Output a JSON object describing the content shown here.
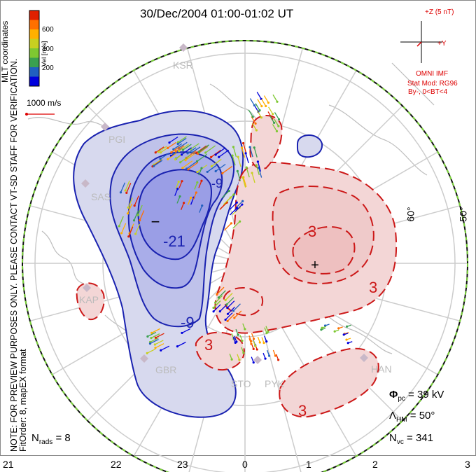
{
  "title": "30/Dec/2004 01:00-01:02 UT",
  "side_note": {
    "line1": "NOTE: FOR PREVIEW PURPOSES ONLY. PLEASE CONTACT VT-SD STAFF FOR VERIFICATION.",
    "line2": "FitOrder: 8, mapEX format"
  },
  "coordinates_label": "MLT coordinates",
  "colorbar": {
    "label": "Vel [m/s]",
    "ticks": [
      "600",
      "400",
      "200"
    ],
    "colors": [
      "#0000dd",
      "#2060c0",
      "#3aa050",
      "#7ec832",
      "#c8d020",
      "#ffb000",
      "#ff7000",
      "#e02000"
    ]
  },
  "reference_vector": {
    "label": "1000 m/s"
  },
  "imf": {
    "z_label": "+Z (5 nT)",
    "y_label": "+Y",
    "source": "OMNI IMF",
    "stat_model": "Stat Mod: RG96",
    "condition": "By-, 0<BT<4"
  },
  "stations": [
    "KSR",
    "PGI",
    "SAS",
    "KAP",
    "GBR",
    "STO",
    "PYK",
    "HAN"
  ],
  "latitude_labels": [
    "60°",
    "50°"
  ],
  "contour_labels": [
    "-21",
    "-9",
    "-9",
    "3",
    "3",
    "3",
    "3"
  ],
  "extrema_markers": {
    "min": "−",
    "max": "+"
  },
  "mlt_ticks": [
    "21",
    "22",
    "23",
    "0",
    "1",
    "2",
    "3"
  ],
  "stats": {
    "phi_pc": "39 kV",
    "lambda_hm": "50°",
    "n_vc": "341",
    "n_rads": "8"
  },
  "styles": {
    "negative_fill": "#d7d9ee",
    "negative_core": "#9a9ee6",
    "negative_line": "#1a22b0",
    "positive_fill": "#f3d6d6",
    "positive_line": "#cc1818",
    "grid_color": "#cccccc",
    "boundary_green": "#7ad23a"
  }
}
